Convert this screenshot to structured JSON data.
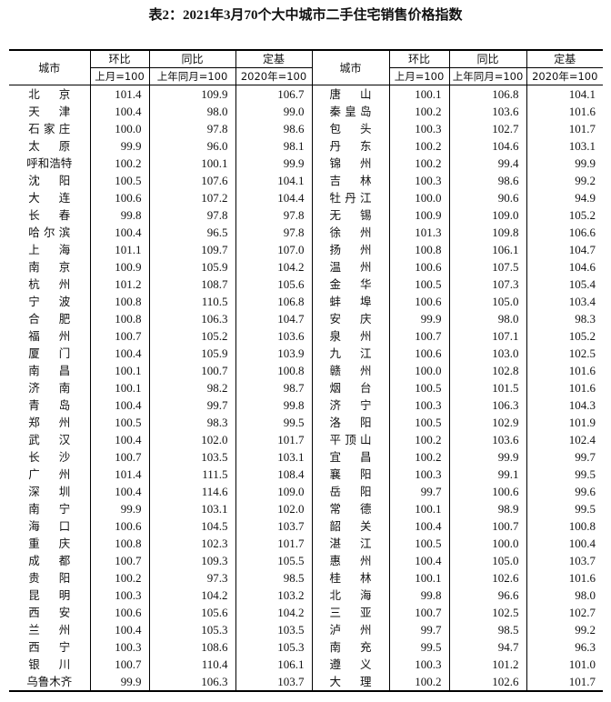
{
  "title": "表2：2021年3月70个大中城市二手住宅销售价格指数",
  "headers": {
    "city": "城市",
    "mom": "环比",
    "mom_base": "上月=100",
    "yoy": "同比",
    "yoy_base": "上年同月=100",
    "fixed": "定基",
    "fixed_base": "2020年=100"
  },
  "left_rows": [
    [
      "北京",
      "101.4",
      "109.9",
      "106.7"
    ],
    [
      "天津",
      "100.4",
      "98.0",
      "99.0"
    ],
    [
      "石家庄",
      "100.0",
      "97.8",
      "98.6"
    ],
    [
      "太原",
      "99.9",
      "96.0",
      "98.1"
    ],
    [
      "呼和浩特",
      "100.2",
      "100.1",
      "99.9"
    ],
    [
      "沈阳",
      "100.5",
      "107.6",
      "104.1"
    ],
    [
      "大连",
      "100.6",
      "107.2",
      "104.4"
    ],
    [
      "长春",
      "99.8",
      "97.8",
      "97.8"
    ],
    [
      "哈尔滨",
      "100.4",
      "96.5",
      "97.8"
    ],
    [
      "上海",
      "101.1",
      "109.7",
      "107.0"
    ],
    [
      "南京",
      "100.9",
      "105.9",
      "104.2"
    ],
    [
      "杭州",
      "101.2",
      "108.7",
      "105.6"
    ],
    [
      "宁波",
      "100.8",
      "110.5",
      "106.8"
    ],
    [
      "合肥",
      "100.8",
      "106.3",
      "104.7"
    ],
    [
      "福州",
      "100.7",
      "105.2",
      "103.6"
    ],
    [
      "厦门",
      "100.4",
      "105.9",
      "103.9"
    ],
    [
      "南昌",
      "100.1",
      "100.7",
      "100.8"
    ],
    [
      "济南",
      "100.1",
      "98.2",
      "98.7"
    ],
    [
      "青岛",
      "100.4",
      "99.7",
      "99.8"
    ],
    [
      "郑州",
      "100.5",
      "98.3",
      "99.5"
    ],
    [
      "武汉",
      "100.4",
      "102.0",
      "101.7"
    ],
    [
      "长沙",
      "100.7",
      "103.5",
      "103.1"
    ],
    [
      "广州",
      "101.4",
      "111.5",
      "108.4"
    ],
    [
      "深圳",
      "100.4",
      "114.6",
      "109.0"
    ],
    [
      "南宁",
      "99.9",
      "103.1",
      "102.0"
    ],
    [
      "海口",
      "100.6",
      "104.5",
      "103.7"
    ],
    [
      "重庆",
      "100.8",
      "102.3",
      "101.7"
    ],
    [
      "成都",
      "100.7",
      "109.3",
      "105.5"
    ],
    [
      "贵阳",
      "100.2",
      "97.3",
      "98.5"
    ],
    [
      "昆明",
      "100.3",
      "104.2",
      "103.2"
    ],
    [
      "西安",
      "100.6",
      "105.6",
      "104.2"
    ],
    [
      "兰州",
      "100.4",
      "105.3",
      "103.5"
    ],
    [
      "西宁",
      "100.3",
      "108.6",
      "105.3"
    ],
    [
      "银川",
      "100.7",
      "110.4",
      "106.1"
    ],
    [
      "乌鲁木齐",
      "99.9",
      "106.3",
      "103.7"
    ]
  ],
  "right_rows": [
    [
      "唐山",
      "100.1",
      "106.8",
      "104.1"
    ],
    [
      "秦皇岛",
      "100.2",
      "103.6",
      "101.6"
    ],
    [
      "包头",
      "100.3",
      "102.7",
      "101.7"
    ],
    [
      "丹东",
      "100.2",
      "104.6",
      "103.1"
    ],
    [
      "锦州",
      "100.2",
      "99.4",
      "99.9"
    ],
    [
      "吉林",
      "100.3",
      "98.6",
      "99.2"
    ],
    [
      "牡丹江",
      "100.0",
      "90.6",
      "94.9"
    ],
    [
      "无锡",
      "100.9",
      "109.0",
      "105.2"
    ],
    [
      "徐州",
      "101.3",
      "109.8",
      "106.6"
    ],
    [
      "扬州",
      "100.8",
      "106.1",
      "104.7"
    ],
    [
      "温州",
      "100.6",
      "107.5",
      "104.6"
    ],
    [
      "金华",
      "100.5",
      "107.3",
      "105.4"
    ],
    [
      "蚌埠",
      "100.6",
      "105.0",
      "103.4"
    ],
    [
      "安庆",
      "99.9",
      "98.0",
      "98.3"
    ],
    [
      "泉州",
      "100.7",
      "107.1",
      "105.2"
    ],
    [
      "九江",
      "100.6",
      "103.0",
      "102.5"
    ],
    [
      "赣州",
      "100.0",
      "102.8",
      "101.6"
    ],
    [
      "烟台",
      "100.5",
      "101.5",
      "101.6"
    ],
    [
      "济宁",
      "100.3",
      "106.3",
      "104.3"
    ],
    [
      "洛阳",
      "100.5",
      "102.9",
      "101.9"
    ],
    [
      "平顶山",
      "100.2",
      "103.6",
      "102.4"
    ],
    [
      "宜昌",
      "100.2",
      "99.9",
      "99.7"
    ],
    [
      "襄阳",
      "100.3",
      "99.1",
      "99.5"
    ],
    [
      "岳阳",
      "99.7",
      "100.6",
      "99.6"
    ],
    [
      "常德",
      "100.1",
      "98.9",
      "99.5"
    ],
    [
      "韶关",
      "100.4",
      "100.7",
      "100.8"
    ],
    [
      "湛江",
      "100.5",
      "100.0",
      "100.4"
    ],
    [
      "惠州",
      "100.4",
      "105.0",
      "103.7"
    ],
    [
      "桂林",
      "100.1",
      "102.6",
      "101.6"
    ],
    [
      "北海",
      "99.8",
      "96.6",
      "98.0"
    ],
    [
      "三亚",
      "100.7",
      "102.5",
      "102.7"
    ],
    [
      "泸州",
      "99.7",
      "98.5",
      "99.2"
    ],
    [
      "南充",
      "99.5",
      "94.7",
      "96.3"
    ],
    [
      "遵义",
      "100.3",
      "101.2",
      "101.0"
    ],
    [
      "大理",
      "100.2",
      "102.6",
      "101.7"
    ]
  ]
}
